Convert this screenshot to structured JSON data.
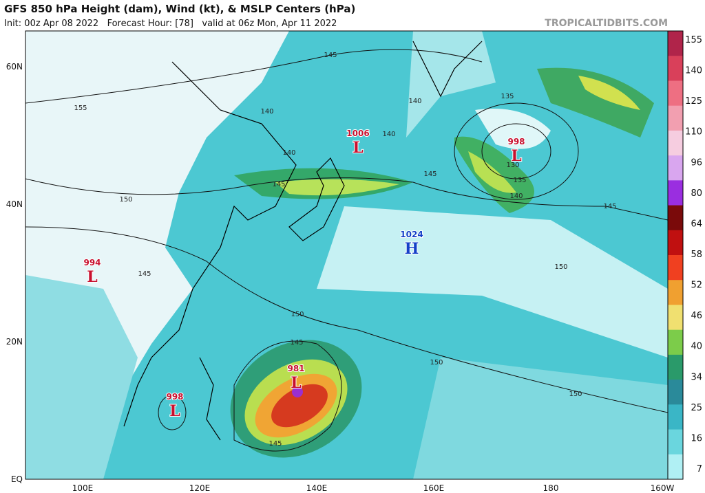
{
  "header": {
    "title": "GFS 850 hPa Height (dam), Wind (kt), & MSLP Centers (hPa)",
    "subtitle": "Init: 00z Apr 08 2022   Forecast Hour: [78]   valid at 06z Mon, Apr 11 2022",
    "credit": "TROPICALTIDBITS.COM"
  },
  "map": {
    "lat_labels": [
      "60N",
      "40N",
      "20N",
      "EQ"
    ],
    "lon_labels": [
      "100E",
      "120E",
      "140E",
      "160E",
      "180",
      "160W"
    ],
    "centers": [
      {
        "value": 1006,
        "letter": "L"
      },
      {
        "value": 998,
        "letter": "L"
      },
      {
        "value": 1024,
        "letter": "H"
      },
      {
        "value": 994,
        "letter": "L"
      },
      {
        "value": 998,
        "letter": "L"
      },
      {
        "value": 981,
        "letter": "L"
      }
    ],
    "contour_labels": [
      "145",
      "140",
      "135",
      "155",
      "140",
      "140",
      "140",
      "130",
      "145",
      "145",
      "135",
      "140",
      "150",
      "145",
      "150",
      "145",
      "150",
      "145",
      "150",
      "150",
      "145"
    ]
  },
  "colorbar": {
    "labels": [
      155,
      140,
      125,
      110,
      96,
      80,
      64,
      58,
      52,
      46,
      40,
      34,
      25,
      16,
      7
    ]
  }
}
